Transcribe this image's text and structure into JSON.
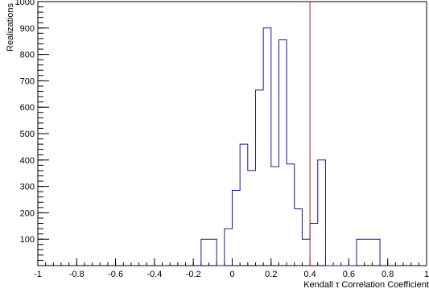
{
  "chart_data": {
    "type": "bar",
    "style": "step-histogram",
    "xlabel": "Kendall τ Correlation Coefficient",
    "ylabel": "Realizations",
    "xlim": [
      -1,
      1
    ],
    "ylim": [
      0,
      1000
    ],
    "x_ticks": [
      -1,
      -0.8,
      -0.6,
      -0.4,
      -0.2,
      0,
      0.2,
      0.4,
      0.6,
      0.8,
      1
    ],
    "x_tick_labels": [
      "-1",
      "-0.8",
      "-0.6",
      "-0.4",
      "-0.2",
      "0",
      "0.2",
      "0.4",
      "0.6",
      "0.8",
      "1"
    ],
    "y_ticks": [
      100,
      200,
      300,
      400,
      500,
      600,
      700,
      800,
      900,
      1000
    ],
    "y_tick_labels": [
      "100",
      "200",
      "300",
      "400",
      "500",
      "600",
      "700",
      "800",
      "900",
      "1000"
    ],
    "bins": {
      "edges": [
        -0.16,
        -0.08,
        -0.04,
        0.0,
        0.04,
        0.08,
        0.12,
        0.16,
        0.2,
        0.24,
        0.28,
        0.32,
        0.36,
        0.4,
        0.44,
        0.48,
        0.64,
        0.76
      ],
      "counts": [
        100,
        0,
        140,
        285,
        460,
        360,
        665,
        900,
        375,
        855,
        385,
        215,
        100,
        160,
        400,
        0,
        100
      ]
    },
    "reference_line": {
      "x": 0.4,
      "color": "#b22222"
    },
    "hist_color": "#1a1a8c",
    "grid": false
  }
}
